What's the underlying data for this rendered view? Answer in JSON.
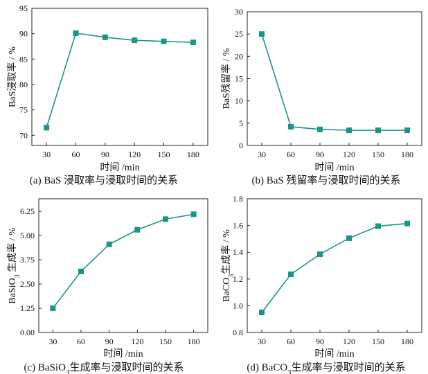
{
  "colors": {
    "series": "#19958a",
    "axis": "#222222"
  },
  "chart_data": [
    {
      "type": "line",
      "x": [
        30,
        60,
        90,
        120,
        150,
        180
      ],
      "values": [
        71.5,
        90.1,
        89.3,
        88.7,
        88.5,
        88.3
      ],
      "xlim": [
        15,
        195
      ],
      "ylim": [
        68,
        95
      ],
      "xticks": [
        30,
        60,
        90,
        120,
        150,
        180
      ],
      "yticks": [
        70,
        75,
        80,
        85,
        90,
        95
      ],
      "xlabel": "时间 /min",
      "ylabel": "BaS浸取率 / %",
      "caption": "(a) BaS 浸取率与浸取时间的关系"
    },
    {
      "type": "line",
      "x": [
        30,
        60,
        90,
        120,
        150,
        180
      ],
      "values": [
        25.0,
        4.2,
        3.6,
        3.4,
        3.4,
        3.4
      ],
      "xlim": [
        15,
        195
      ],
      "ylim": [
        0,
        30
      ],
      "xticks": [
        30,
        60,
        90,
        120,
        150,
        180
      ],
      "yticks": [
        0,
        5,
        10,
        15,
        20,
        25,
        30
      ],
      "xlabel": "时间 /min",
      "ylabel": "BaS残留率 / %",
      "caption": "(b) BaS 残留率与浸取时间的关系"
    },
    {
      "type": "line",
      "x": [
        30,
        60,
        90,
        120,
        150,
        180
      ],
      "values": [
        1.25,
        3.15,
        4.55,
        5.3,
        5.85,
        6.1
      ],
      "xlim": [
        15,
        195
      ],
      "ylim": [
        0,
        6.9
      ],
      "xticks": [
        30,
        60,
        90,
        120,
        150,
        180
      ],
      "yticks": [
        "0.00",
        "1.25",
        "2.50",
        "3.75",
        "5.00",
        "6.25"
      ],
      "xlabel": "时间 /min",
      "ylabel_main": "BaSiO",
      "ylabel_sub": "3",
      "ylabel_rest": " 生成率 / %",
      "caption_main": "(c) BaSiO",
      "caption_sub": "3",
      "caption_rest": "生成率与浸取时间的关系"
    },
    {
      "type": "line",
      "x": [
        30,
        60,
        90,
        120,
        150,
        180
      ],
      "values": [
        0.95,
        1.235,
        1.385,
        1.505,
        1.595,
        1.615
      ],
      "xlim": [
        15,
        195
      ],
      "ylim": [
        0.8,
        1.8
      ],
      "xticks": [
        30,
        60,
        90,
        120,
        150,
        180
      ],
      "yticks": [
        "0.8",
        "1.0",
        "1.2",
        "1.4",
        "1.6",
        "1.8"
      ],
      "xlabel": "时间 /min",
      "ylabel_main": "BaCO",
      "ylabel_sub": "3",
      "ylabel_rest": "生成率 / %",
      "caption_main": "(d) BaCO",
      "caption_sub": "3",
      "caption_rest": "生成率与浸取时间的关系"
    }
  ]
}
